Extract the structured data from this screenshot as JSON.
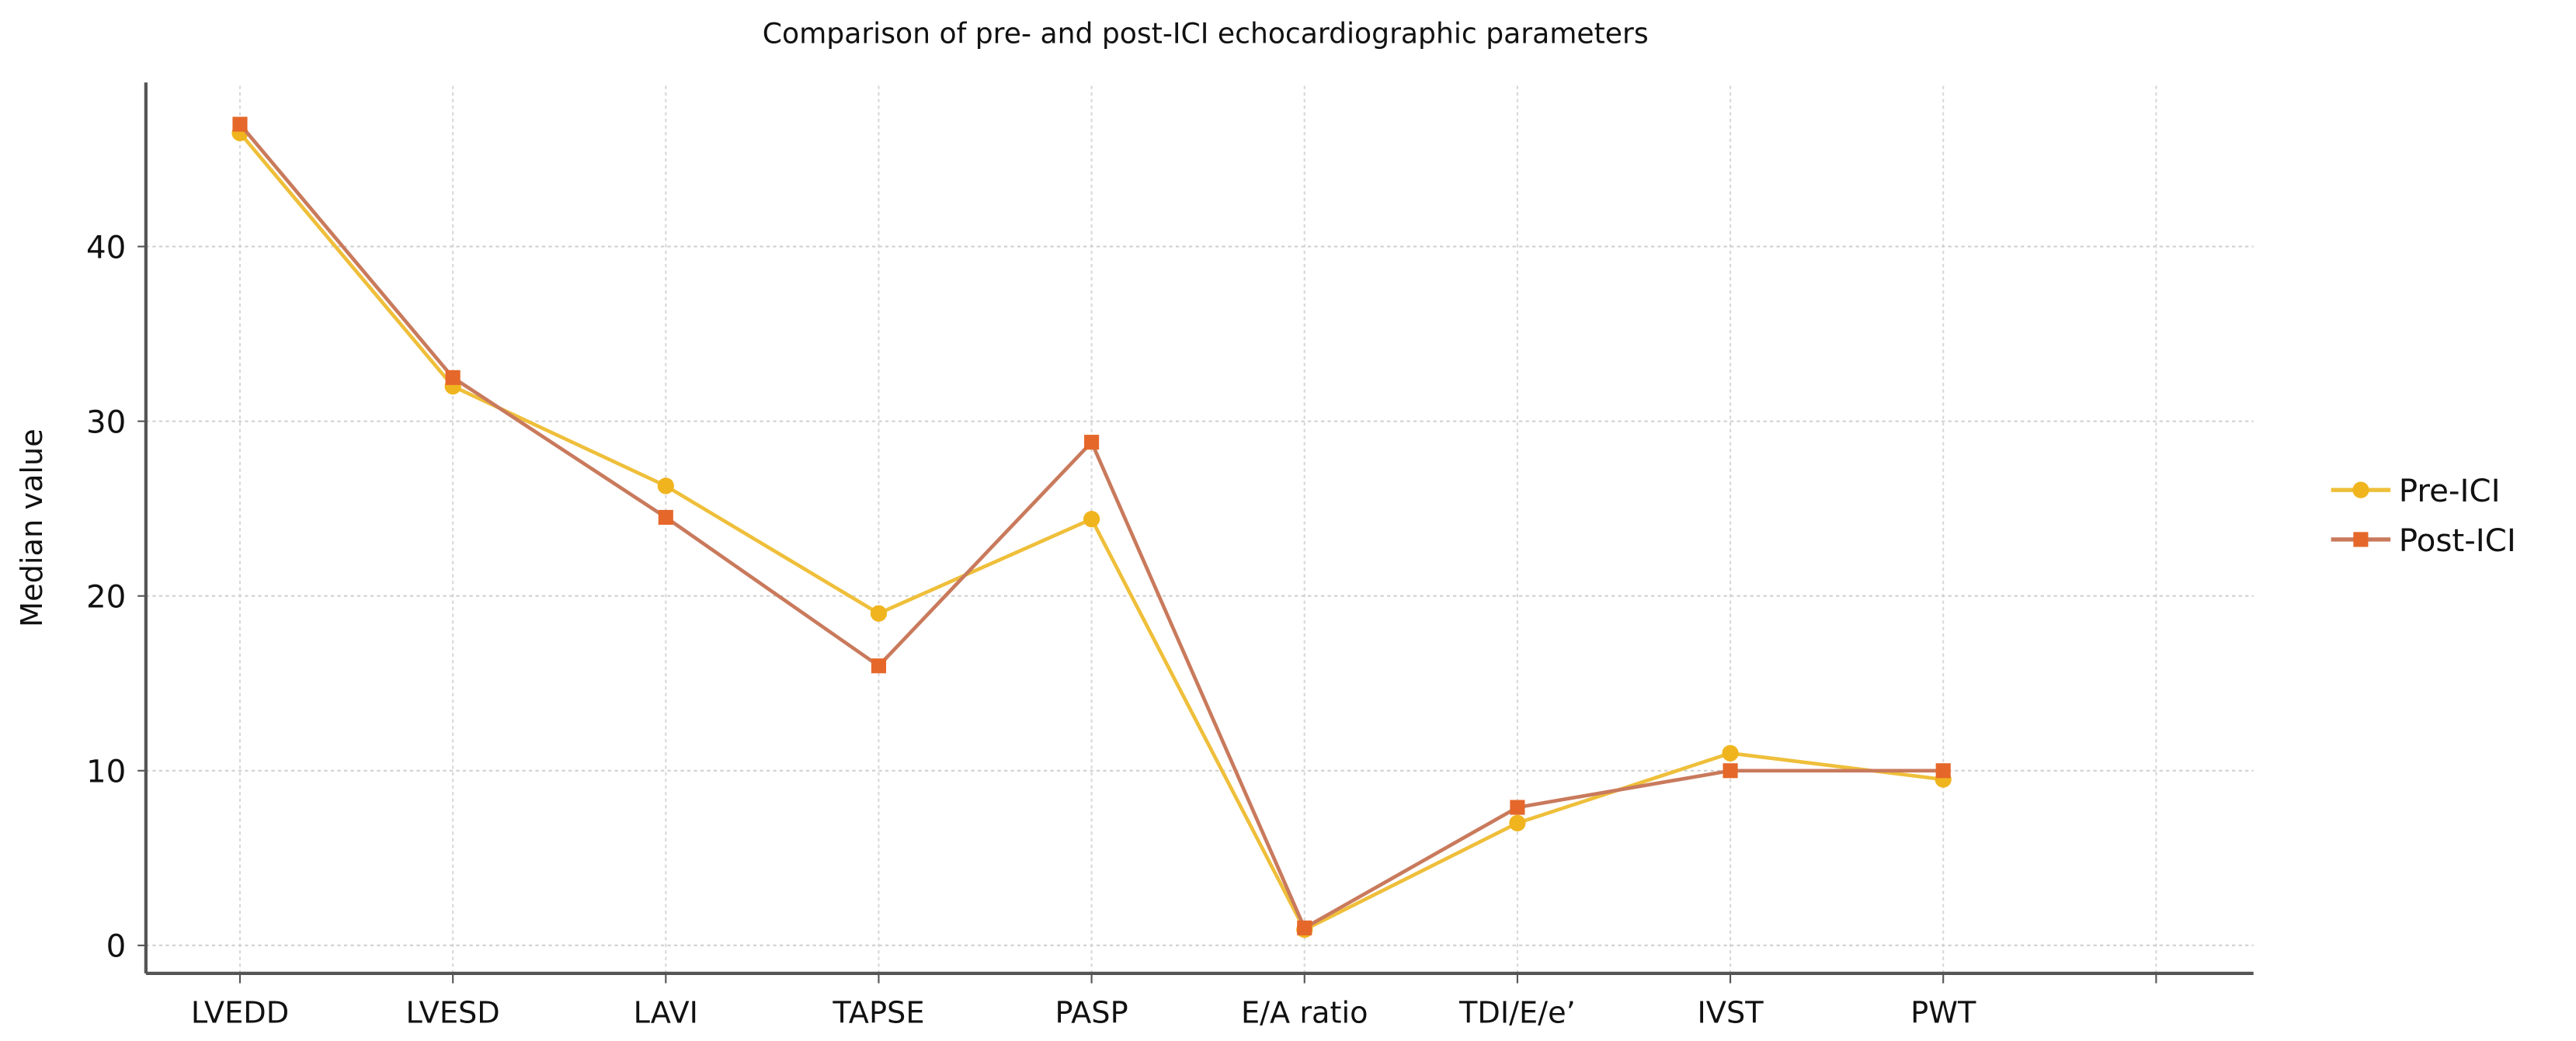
{
  "chart_data": {
    "type": "line",
    "title": "Comparison of pre- and post-ICI echocardiographic parameters",
    "xlabel": "",
    "ylabel": "Median value",
    "categories": [
      "LVEDD",
      "LVESD",
      "LAVI",
      "TAPSE",
      "PASP",
      "E/A ratio",
      "TDI/E/e’",
      "IVST",
      "PWT"
    ],
    "yticks": [
      0,
      10,
      20,
      30,
      40
    ],
    "ylim": [
      -1.6,
      49.2
    ],
    "grid": true,
    "legend_position": "right",
    "series": [
      {
        "name": "Pre-ICI",
        "marker": "circle",
        "color": "#F0B51E",
        "line_color": "#EFBF3A",
        "values": [
          46.5,
          32.0,
          26.3,
          19.0,
          24.4,
          0.9,
          7.0,
          11.0,
          9.5
        ]
      },
      {
        "name": "Post-ICI",
        "marker": "square",
        "color": "#E5672A",
        "line_color": "#C97A5C",
        "values": [
          47.0,
          32.5,
          24.5,
          16.0,
          28.8,
          1.0,
          7.9,
          10.0,
          10.0
        ]
      }
    ]
  }
}
